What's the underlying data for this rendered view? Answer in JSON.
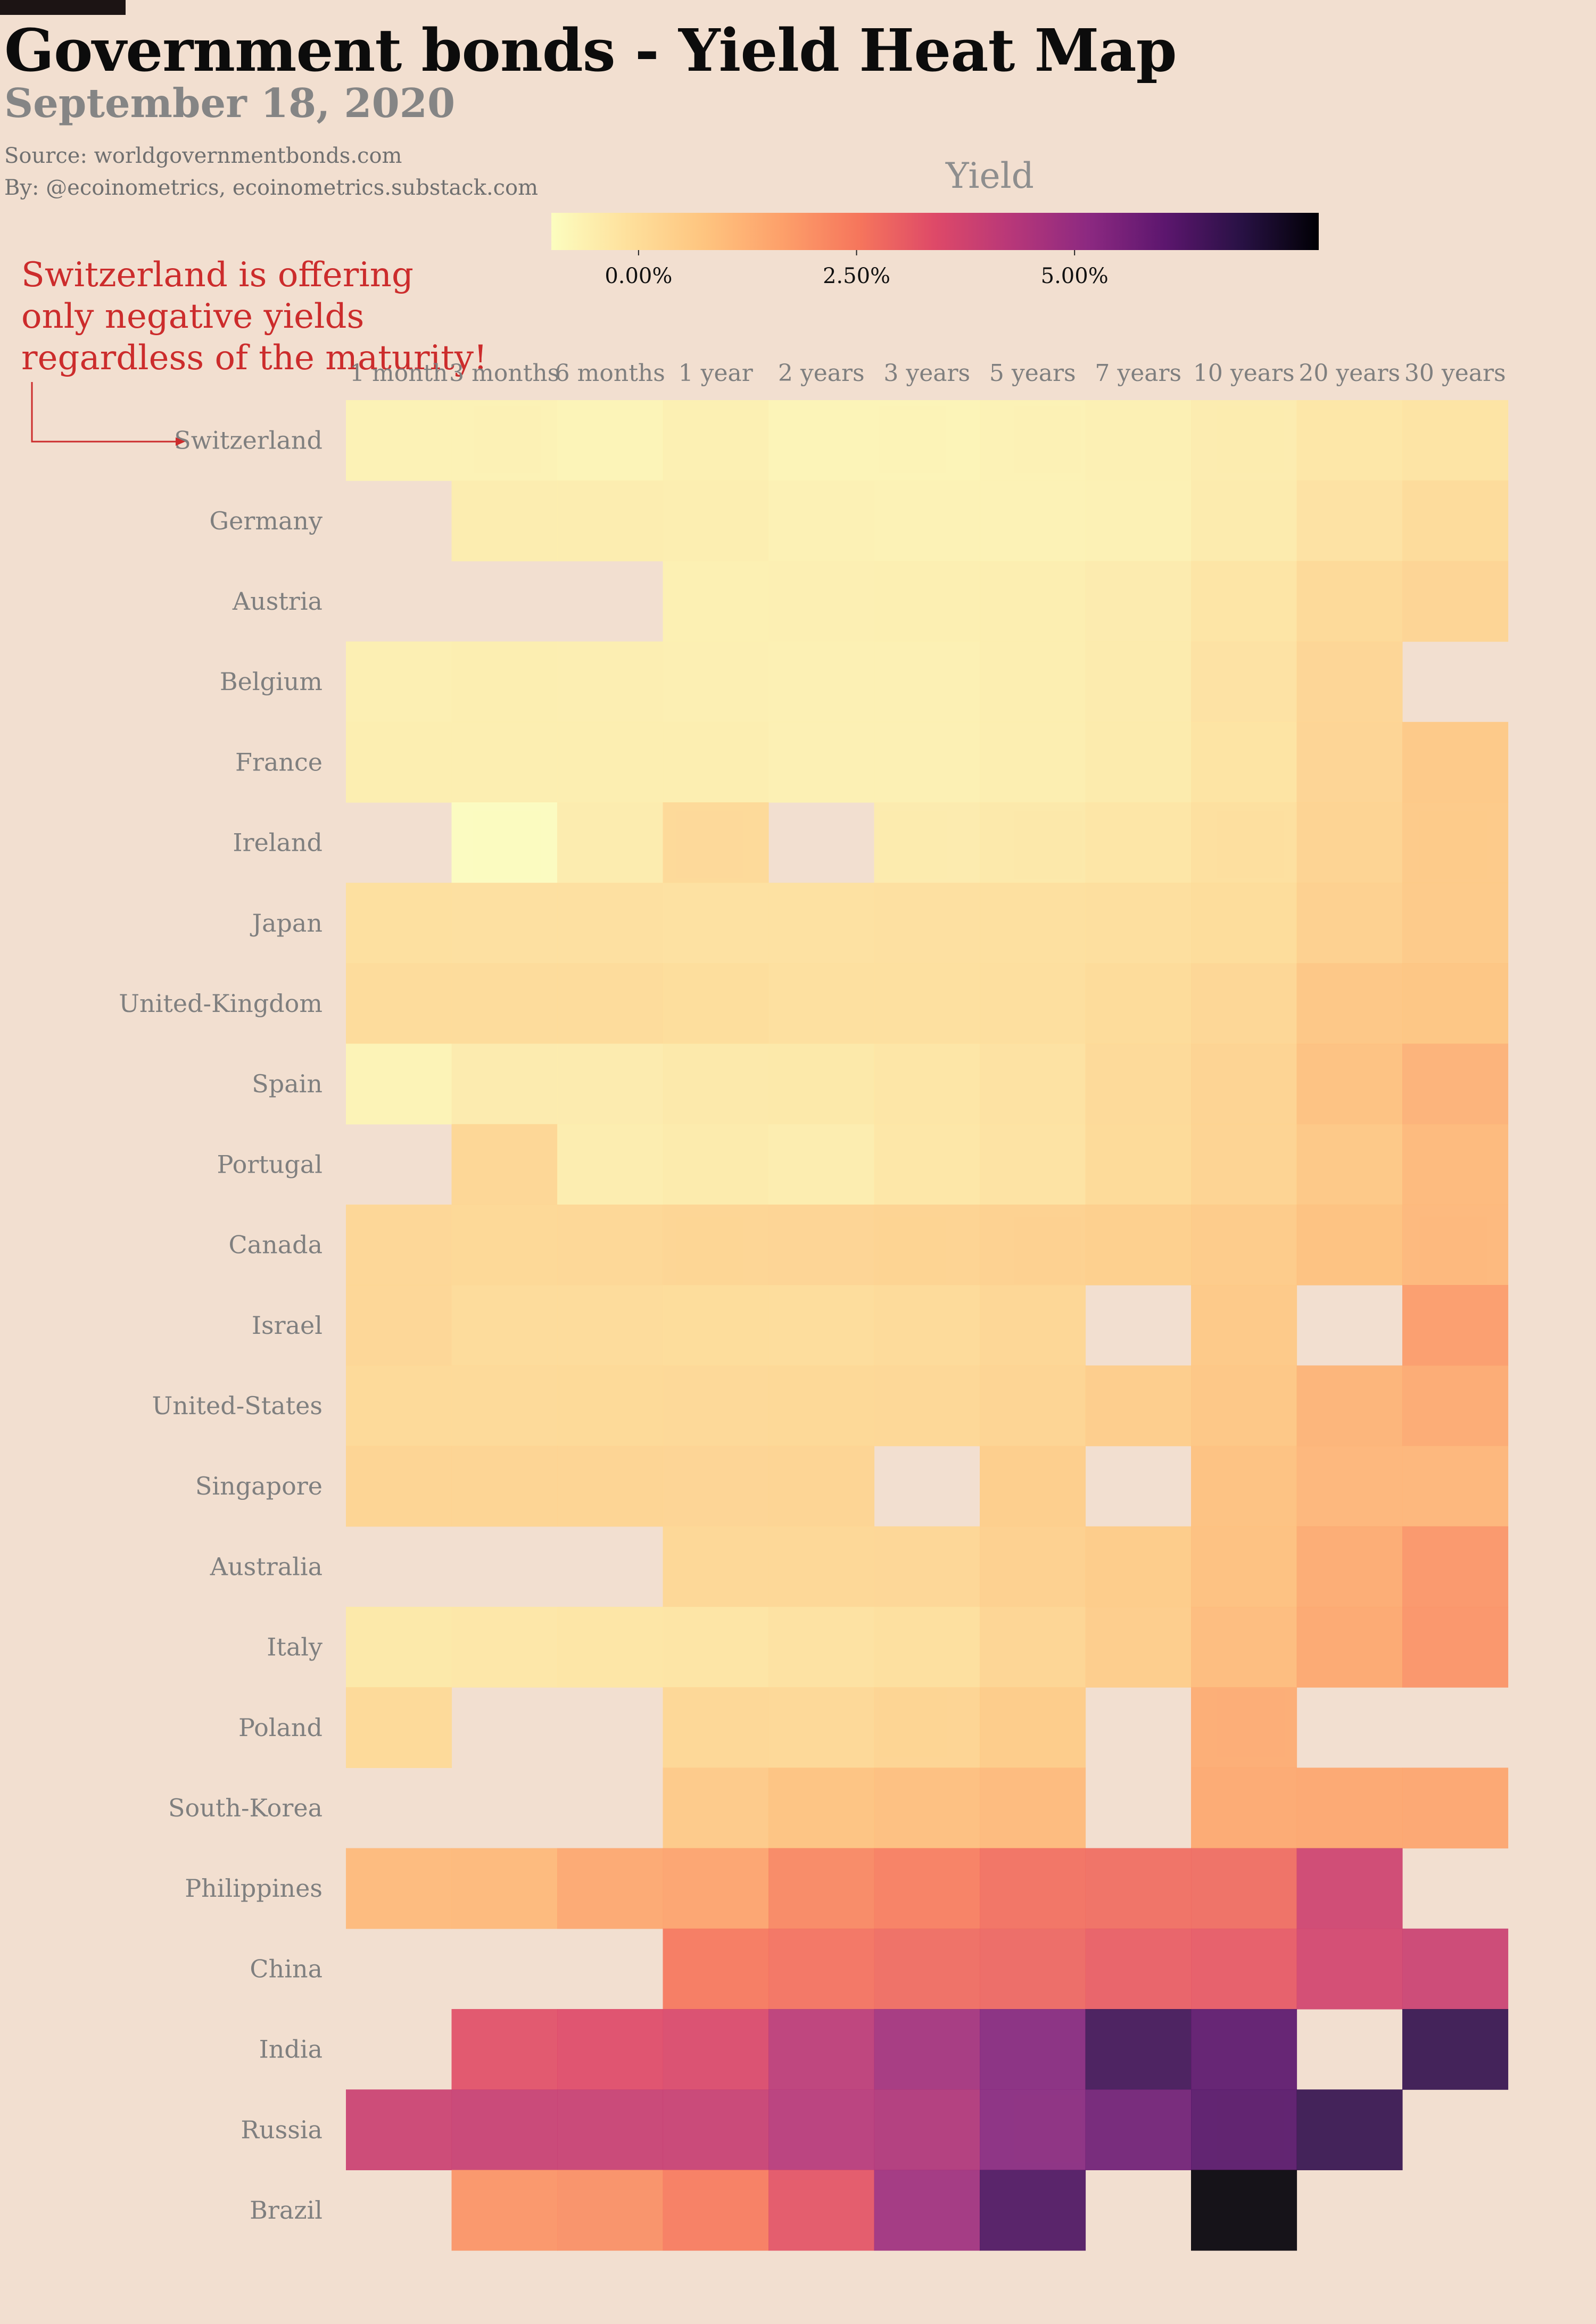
{
  "title": "Government bonds - Yield Heat Map",
  "subtitle": "September 18, 2020",
  "source": "Source: worldgovernmentbonds.com",
  "byline": "By: @ecoinometrics, ecoinometrics.substack.com",
  "annotation": "Switzerland is offering only negative yields regardless of the maturity!",
  "colors": {
    "background": "#f2dfd0",
    "annotation": "#cc2c2c",
    "missing": "#f2dfd0"
  },
  "chart_data": {
    "type": "heatmap",
    "title": "Government bonds - Yield Heat Map",
    "subtitle": "September 18, 2020",
    "colorbar": {
      "label": "Yield",
      "colormap": "magma_r",
      "range": [
        -1.0,
        7.8
      ],
      "ticks": [
        0.0,
        2.5,
        5.0
      ],
      "tick_labels": [
        "0.00%",
        "2.50%",
        "5.00%"
      ]
    },
    "x": [
      "1 month",
      "3 months",
      "6 months",
      "1 year",
      "2 years",
      "3 years",
      "5 years",
      "7 years",
      "10 years",
      "20 years",
      "30 years"
    ],
    "y": [
      "Switzerland",
      "Germany",
      "Austria",
      "Belgium",
      "France",
      "Ireland",
      "Japan",
      "United-Kingdom",
      "Spain",
      "Portugal",
      "Canada",
      "Israel",
      "United-States",
      "Singapore",
      "Australia",
      "Italy",
      "Poland",
      "South-Korea",
      "Philippines",
      "China",
      "India",
      "Russia",
      "Brazil"
    ],
    "values": [
      [
        -0.69,
        -0.69,
        -0.75,
        -0.63,
        -0.75,
        -0.75,
        -0.7,
        -0.64,
        -0.51,
        -0.32,
        -0.25
      ],
      [
        null,
        -0.55,
        -0.55,
        -0.56,
        -0.67,
        -0.69,
        -0.7,
        -0.67,
        -0.48,
        -0.19,
        0.03
      ],
      [
        null,
        null,
        null,
        -0.63,
        -0.62,
        -0.61,
        -0.56,
        -0.49,
        -0.26,
        0.1,
        0.25
      ],
      [
        -0.62,
        -0.57,
        -0.59,
        -0.62,
        -0.65,
        -0.64,
        -0.58,
        -0.47,
        -0.19,
        0.22,
        null
      ],
      [
        -0.56,
        -0.56,
        -0.57,
        -0.57,
        -0.65,
        -0.64,
        -0.56,
        -0.45,
        -0.23,
        0.25,
        0.65
      ],
      [
        null,
        -1.0,
        -0.5,
        0.1,
        null,
        -0.49,
        -0.4,
        -0.3,
        -0.1,
        0.3,
        0.6
      ],
      [
        -0.1,
        -0.12,
        -0.12,
        -0.14,
        -0.14,
        -0.13,
        -0.1,
        -0.06,
        0.02,
        0.4,
        0.61
      ],
      [
        0.03,
        0.03,
        0.04,
        -0.01,
        -0.09,
        -0.1,
        -0.05,
        0.05,
        0.2,
        0.7,
        0.75
      ],
      [
        -0.72,
        -0.49,
        -0.49,
        -0.4,
        -0.38,
        -0.3,
        -0.18,
        0.09,
        0.29,
        0.85,
        1.24
      ],
      [
        null,
        0.2,
        -0.53,
        -0.45,
        -0.55,
        -0.32,
        -0.2,
        0.08,
        0.29,
        0.68,
        1.09
      ],
      [
        0.18,
        0.14,
        0.16,
        0.23,
        0.25,
        0.3,
        0.37,
        0.45,
        0.56,
        0.87,
        1.1
      ],
      [
        0.18,
        0.04,
        0.03,
        0.02,
        0.01,
        0.06,
        0.2,
        null,
        0.65,
        null,
        1.76
      ],
      [
        0.09,
        0.1,
        0.11,
        0.13,
        0.14,
        0.16,
        0.27,
        0.5,
        0.69,
        1.21,
        1.44
      ],
      [
        0.26,
        0.26,
        0.27,
        0.25,
        0.27,
        null,
        0.49,
        null,
        0.85,
        1.14,
        1.15
      ],
      [
        null,
        null,
        null,
        0.16,
        0.17,
        0.19,
        0.4,
        0.55,
        0.88,
        1.42,
        1.9
      ],
      [
        -0.38,
        -0.34,
        -0.3,
        -0.28,
        -0.18,
        -0.1,
        0.24,
        0.5,
        0.98,
        1.5,
        1.95
      ],
      [
        0.1,
        null,
        null,
        0.15,
        0.13,
        0.26,
        0.55,
        null,
        1.39,
        null,
        null
      ],
      [
        null,
        null,
        null,
        0.59,
        0.8,
        0.9,
        1.05,
        null,
        1.46,
        1.52,
        1.55
      ],
      [
        1.05,
        1.08,
        1.49,
        1.59,
        2.19,
        2.4,
        2.67,
        2.74,
        2.76,
        3.78,
        null
      ],
      [
        null,
        null,
        null,
        2.51,
        2.64,
        2.77,
        2.86,
        3.05,
        3.12,
        3.7,
        3.86
      ],
      [
        null,
        3.3,
        3.4,
        3.51,
        4.19,
        4.7,
        5.31,
        6.51,
        6.06,
        null,
        6.7
      ],
      [
        3.85,
        3.92,
        3.92,
        3.93,
        4.3,
        4.44,
        5.26,
        5.7,
        6.15,
        6.7,
        null
      ],
      [
        null,
        1.94,
        2.02,
        2.43,
        3.21,
        4.8,
        6.3,
        null,
        7.73,
        null,
        null
      ]
    ]
  }
}
